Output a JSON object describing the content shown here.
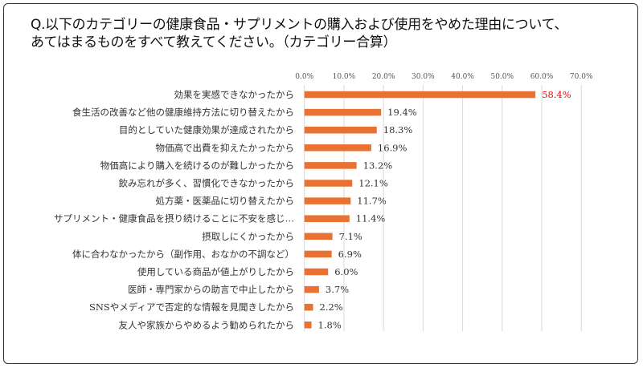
{
  "chart_data": {
    "type": "bar",
    "orientation": "horizontal",
    "title": "Q.以下のカテゴリーの健康食品・サプリメントの購入および使用をやめた理由について、\nあてはまるものをすべて教えてください。（カテゴリー合算）",
    "categories": [
      "効果を実感できなかったから",
      "食生活の改善など他の健康維持方法に切り替えたから",
      "目的としていた健康効果が達成されたから",
      "物価高で出費を抑えたかったから",
      "物価高により購入を続けるのが難しかったから",
      "飲み忘れが多く、習慣化できなかったから",
      "処方薬・医薬品に切り替えたから",
      "サプリメント・健康食品を摂り続けることに不安を感じ…",
      "摂取しにくかったから",
      "体に合わなかったから（副作用、おなかの不調など）",
      "使用している商品が値上がりしたから",
      "医師・専門家からの助言で中止したから",
      "SNSやメディアで否定的な情報を見聞きしたから",
      "友人や家族からやめるよう勧められたから"
    ],
    "values": [
      58.4,
      19.4,
      18.3,
      16.9,
      13.2,
      12.1,
      11.7,
      11.4,
      7.1,
      6.9,
      6.0,
      3.7,
      2.2,
      1.8
    ],
    "data_labels": [
      "58.4%",
      "19.4%",
      "18.3%",
      "16.9%",
      "13.2%",
      "12.1%",
      "11.7%",
      "11.4%",
      "7.1%",
      "6.9%",
      "6.0%",
      "3.7%",
      "2.2%",
      "1.8%"
    ],
    "x_ticks": [
      "0.0%",
      "10.0%",
      "20.0%",
      "30.0%",
      "40.0%",
      "50.0%",
      "60.0%",
      "70.0%"
    ],
    "xlim": [
      0,
      70
    ],
    "xlabel": "",
    "ylabel": "",
    "grid": true,
    "axis_position": "top",
    "bar_color": "#E97132",
    "highlight_label_color": "#FF0000"
  }
}
